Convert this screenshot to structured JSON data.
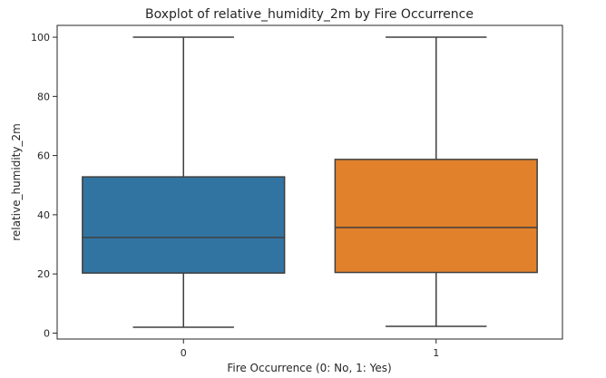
{
  "chart_data": {
    "type": "boxplot",
    "title": "Boxplot of relative_humidity_2m by Fire Occurrence",
    "xlabel": "Fire Occurrence (0: No, 1: Yes)",
    "ylabel": "relative_humidity_2m",
    "ylim": [
      -2,
      104
    ],
    "yticks": [
      0,
      20,
      40,
      60,
      80,
      100
    ],
    "grid": false,
    "categories": [
      "0",
      "1"
    ],
    "boxes": [
      {
        "category": "0",
        "whisker_low": 2,
        "q1": 20.3,
        "median": 32.3,
        "q3": 52.8,
        "whisker_high": 100,
        "color": "#3274a1"
      },
      {
        "category": "1",
        "whisker_low": 2.3,
        "q1": 20.5,
        "median": 35.7,
        "q3": 58.7,
        "whisker_high": 100,
        "color": "#e1812c"
      }
    ]
  }
}
